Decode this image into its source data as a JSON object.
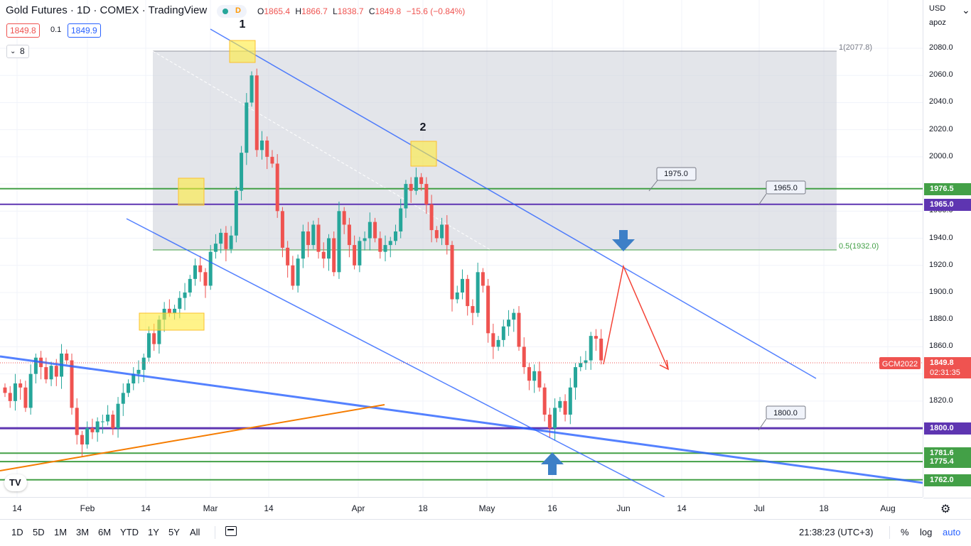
{
  "header": {
    "title": "Gold Futures · 1D · COMEX · TradingView",
    "interval_badge": "D",
    "ohlc": {
      "open_label": "O",
      "open": "1865.4",
      "high_label": "H",
      "high": "1866.7",
      "low_label": "L",
      "low": "1838.7",
      "close_label": "C",
      "close": "1849.8",
      "change": "−15.6 (−0.84%)"
    },
    "bid": "1849.8",
    "spread": "0.1",
    "ask": "1849.9",
    "indicator_count": "8"
  },
  "price_axis": {
    "currency": "USD",
    "sub": "apoz",
    "ticks": [
      "2080.0",
      "2060.0",
      "2040.0",
      "2020.0",
      "2000.0",
      "1960.0",
      "1940.0",
      "1920.0",
      "1900.0",
      "1880.0",
      "1860.0",
      "1820.0"
    ],
    "tags": [
      {
        "value": "1976.5",
        "color": "#43a047"
      },
      {
        "value": "1965.0",
        "color": "#5e35b1"
      },
      {
        "value": "1800.0",
        "color": "#5e35b1"
      },
      {
        "value": "1781.6",
        "color": "#43a047"
      },
      {
        "value": "1775.4",
        "color": "#43a047"
      },
      {
        "value": "1762.0",
        "color": "#43a047"
      }
    ],
    "last_price": "1849.8",
    "countdown": "02:31:35",
    "symbol_tag": "GCM2022"
  },
  "time_axis": {
    "ticks": [
      "14",
      "Feb",
      "14",
      "Mar",
      "14",
      "Apr",
      "18",
      "May",
      "16",
      "Jun",
      "14",
      "Jul",
      "18",
      "Aug"
    ]
  },
  "annotations": {
    "wave1": "1",
    "wave2": "2",
    "fib_top": "1(2077.8)",
    "fib_mid": "0.5(1932.0)",
    "callout_1975": "1975.0",
    "callout_1965": "1965.0",
    "callout_1800": "1800.0"
  },
  "bottom_bar": {
    "ranges": [
      "1D",
      "5D",
      "1M",
      "3M",
      "6M",
      "YTD",
      "1Y",
      "5Y",
      "All"
    ],
    "clock": "21:38:23 (UTC+3)",
    "percent": "%",
    "log": "log",
    "auto": "auto"
  },
  "colors": {
    "up": "#26a69a",
    "down": "#ef5350",
    "trend": "#2962ff",
    "support": "#43a047",
    "purple": "#5e35b1",
    "orange": "#f57c00"
  },
  "chart_data": {
    "type": "candlestick",
    "title": "Gold Futures · 1D · COMEX",
    "ylim": [
      1755,
      2090
    ],
    "horizontal_levels": [
      1976.5,
      1965.0,
      1932.0,
      1800.0,
      1781.6,
      1775.4,
      1762.0
    ],
    "candles_close": [
      1826,
      1820,
      1833,
      1830,
      1815,
      1840,
      1852,
      1845,
      1836,
      1846,
      1838,
      1855,
      1850,
      1815,
      1795,
      1788,
      1800,
      1797,
      1805,
      1805,
      1810,
      1800,
      1818,
      1826,
      1833,
      1840,
      1843,
      1852,
      1870,
      1862,
      1880,
      1888,
      1885,
      1888,
      1896,
      1900,
      1910,
      1920,
      1915,
      1905,
      1930,
      1936,
      1944,
      1932,
      1942,
      1975,
      2003,
      2040,
      2060,
      2005,
      2012,
      2000,
      1995,
      1960,
      1933,
      1920,
      1905,
      1925,
      1945,
      1935,
      1950,
      1930,
      1925,
      1940,
      1915,
      1960,
      1950,
      1935,
      1920,
      1938,
      1940,
      1952,
      1940,
      1930,
      1935,
      1938,
      1945,
      1962,
      1980,
      1975,
      1985,
      1980,
      1965,
      1946,
      1940,
      1950,
      1935,
      1895,
      1900,
      1910,
      1890,
      1885,
      1915,
      1905,
      1870,
      1860,
      1865,
      1875,
      1880,
      1885,
      1860,
      1845,
      1835,
      1842,
      1830,
      1810,
      1800,
      1815,
      1820,
      1810,
      1830,
      1845,
      1848,
      1850,
      1868,
      1866,
      1850
    ]
  }
}
